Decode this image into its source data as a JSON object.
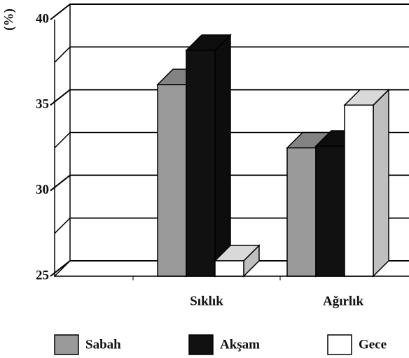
{
  "chart_data": {
    "type": "bar3d",
    "y_label": "(%)",
    "categories": [
      "Sıklık",
      "Ağırlık"
    ],
    "series": [
      {
        "name": "Sabah",
        "color": "#9a9a9a",
        "values": [
          36.2,
          32.5
        ]
      },
      {
        "name": "Akşam",
        "color": "#111111",
        "values": [
          38.2,
          32.6
        ]
      },
      {
        "name": "Gece",
        "color": "#ffffff",
        "values": [
          25.9,
          35.0
        ]
      }
    ],
    "ylim": [
      25,
      40
    ],
    "yticks": [
      25,
      30,
      35,
      40
    ],
    "minor_yticks": [
      27.5,
      32.5,
      37.5
    ],
    "grid": true
  }
}
